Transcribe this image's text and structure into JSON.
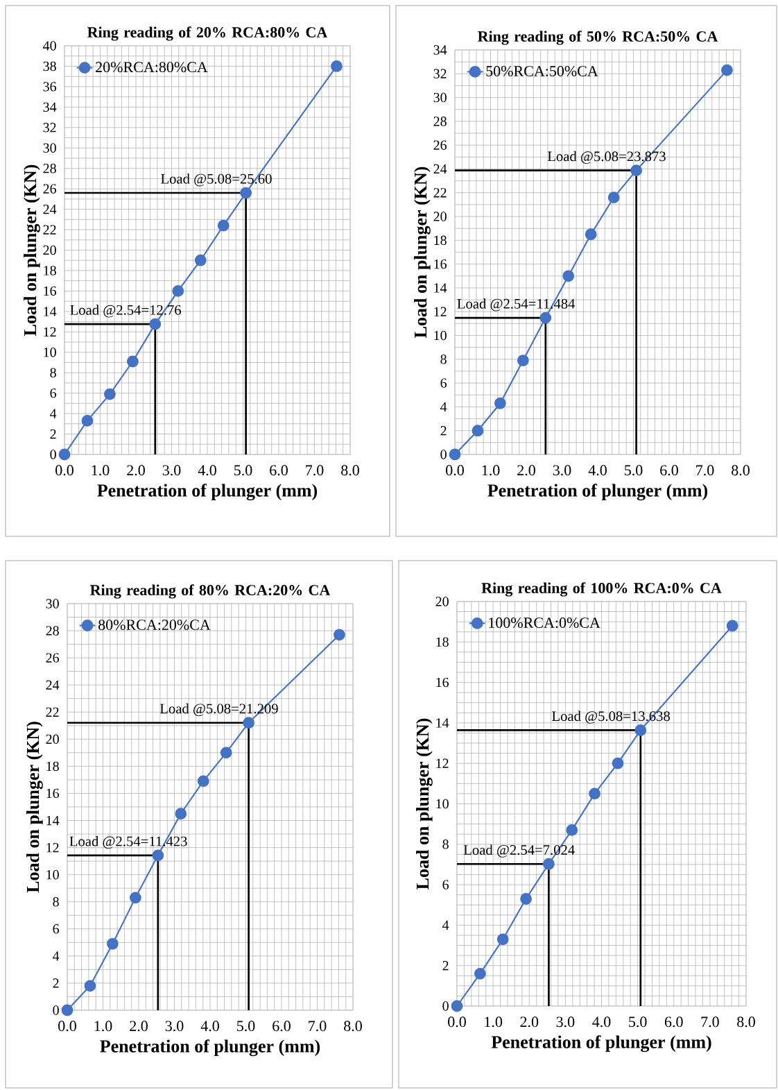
{
  "chart_data": [
    {
      "type": "line",
      "title": "Ring reading of 20% RCA:80% CA",
      "xlabel": "Penetration of plunger (mm)",
      "ylabel": "Load on plunger (KN)",
      "x": [
        0,
        0.64,
        1.27,
        1.91,
        2.54,
        3.18,
        3.81,
        4.45,
        5.08,
        7.62
      ],
      "series": [
        {
          "name": "20%RCA:80%CA",
          "color": "#4472c4",
          "values": [
            0,
            3.3,
            5.9,
            9.1,
            12.76,
            16.0,
            19.0,
            22.4,
            25.6,
            38.0
          ]
        },
        {
          "type": "line",
          "color": "#000000",
          "marker": "none",
          "x": [
            0,
            2.54,
            2.54
          ],
          "values": [
            12.76,
            12.76,
            0
          ]
        },
        {
          "type": "line",
          "color": "#000000",
          "marker": "none",
          "x": [
            0,
            5.08,
            5.08
          ],
          "values": [
            25.6,
            25.6,
            0
          ]
        }
      ],
      "xlim": [
        0,
        8
      ],
      "xticks": [
        {
          "value": 0,
          "label": "0.0"
        },
        {
          "value": 1,
          "label": "1.0"
        },
        {
          "value": 2,
          "label": "2.0"
        },
        {
          "value": 3,
          "label": "3.0"
        },
        {
          "value": 4,
          "label": "4.0"
        },
        {
          "value": 5,
          "label": "5.0"
        },
        {
          "value": 6,
          "label": "6.0"
        },
        {
          "value": 7,
          "label": "7.0"
        },
        {
          "value": 8,
          "label": "8.0"
        }
      ],
      "ylim": [
        0,
        40
      ],
      "yticks": [
        0,
        2,
        4,
        6,
        8,
        10,
        12,
        14,
        16,
        18,
        20,
        22,
        24,
        26,
        28,
        30,
        32,
        34,
        36,
        38,
        40
      ],
      "annotations": [
        "Load @2.54=12.76",
        "Load @5.08=25.60"
      ],
      "grid": true,
      "legend": "top left",
      "marker": "circle",
      "line_style": "solid"
    },
    {
      "type": "line",
      "title": "Ring reading of 50% RCA:50% CA",
      "xlabel": "Penetration of plunger (mm)",
      "ylabel": "Load on plunger (KN)",
      "x": [
        0,
        0.64,
        1.27,
        1.91,
        2.54,
        3.18,
        3.81,
        4.45,
        5.08,
        7.62
      ],
      "series": [
        {
          "name": "50%RCA:50%CA",
          "color": "#4472c4",
          "values": [
            0,
            2.0,
            4.3,
            7.9,
            11.484,
            15.0,
            18.5,
            21.6,
            23.873,
            32.3
          ]
        },
        {
          "type": "line",
          "color": "#000000",
          "marker": "none",
          "x": [
            0,
            2.54,
            2.54
          ],
          "values": [
            11.484,
            11.484,
            0
          ]
        },
        {
          "type": "line",
          "color": "#000000",
          "marker": "none",
          "x": [
            0,
            5.08,
            5.08
          ],
          "values": [
            23.873,
            23.873,
            0
          ]
        }
      ],
      "xlim": [
        0,
        8
      ],
      "xticks": [
        {
          "value": 0,
          "label": "0.0"
        },
        {
          "value": 1,
          "label": "1.0"
        },
        {
          "value": 2,
          "label": "2.0"
        },
        {
          "value": 3,
          "label": "3.0"
        },
        {
          "value": 4,
          "label": "4.0"
        },
        {
          "value": 5,
          "label": "5.0"
        },
        {
          "value": 6,
          "label": "6.0"
        },
        {
          "value": 7,
          "label": "7.0"
        },
        {
          "value": 8,
          "label": "8.0"
        }
      ],
      "ylim": [
        0,
        34
      ],
      "yticks": [
        0,
        2,
        4,
        6,
        8,
        10,
        12,
        14,
        16,
        18,
        20,
        22,
        24,
        26,
        28,
        30,
        32,
        34
      ],
      "annotations": [
        "Load @2.54=11.484",
        "Load @5.08=23.873"
      ],
      "grid": true,
      "legend": "top left",
      "marker": "circle",
      "line_style": "solid"
    },
    {
      "type": "line",
      "title": "Ring reading of 80% RCA:20% CA",
      "xlabel": "Penetration of plunger (mm)",
      "ylabel": "Load on plunger (KN)",
      "x": [
        0,
        0.64,
        1.27,
        1.91,
        2.54,
        3.18,
        3.81,
        4.45,
        5.08,
        7.62
      ],
      "series": [
        {
          "name": "80%RCA:20%CA",
          "color": "#4472c4",
          "values": [
            0,
            1.8,
            4.9,
            8.3,
            11.423,
            14.5,
            16.9,
            19.0,
            21.209,
            27.7
          ]
        },
        {
          "type": "line",
          "color": "#000000",
          "marker": "none",
          "x": [
            0,
            2.54,
            2.54
          ],
          "values": [
            11.423,
            11.423,
            0
          ]
        },
        {
          "type": "line",
          "color": "#000000",
          "marker": "none",
          "x": [
            0,
            5.08,
            5.08
          ],
          "values": [
            21.209,
            21.209,
            0
          ]
        }
      ],
      "xlim": [
        0,
        8
      ],
      "xticks": [
        {
          "value": 0,
          "label": "0.0"
        },
        {
          "value": 1,
          "label": "1.0"
        },
        {
          "value": 2,
          "label": "2.0"
        },
        {
          "value": 3,
          "label": "3.0"
        },
        {
          "value": 4,
          "label": "4.0"
        },
        {
          "value": 5,
          "label": "5.0"
        },
        {
          "value": 6,
          "label": "6.0"
        },
        {
          "value": 7,
          "label": "7.0"
        },
        {
          "value": 8,
          "label": "8.0"
        }
      ],
      "ylim": [
        0,
        30
      ],
      "yticks": [
        0,
        2,
        4,
        6,
        8,
        10,
        12,
        14,
        16,
        18,
        20,
        22,
        24,
        26,
        28,
        30
      ],
      "annotations": [
        "Load @2.54=11.423",
        "Load @5.08=21.209"
      ],
      "grid": true,
      "legend": "top left",
      "marker": "circle",
      "line_style": "solid"
    },
    {
      "type": "line",
      "title": "Ring reading of 100% RCA:0% CA",
      "xlabel": "Penetration of plunger (mm)",
      "ylabel": "Load on plunger (KN)",
      "x": [
        0,
        0.64,
        1.27,
        1.91,
        2.54,
        3.18,
        3.81,
        4.45,
        5.08,
        7.62
      ],
      "series": [
        {
          "name": "100%RCA:0%CA",
          "color": "#4472c4",
          "values": [
            0,
            1.6,
            3.3,
            5.3,
            7.024,
            8.7,
            10.5,
            12.0,
            13.638,
            18.8
          ]
        },
        {
          "type": "line",
          "color": "#000000",
          "marker": "none",
          "x": [
            0,
            2.54,
            2.54
          ],
          "values": [
            7.024,
            7.024,
            0
          ]
        },
        {
          "type": "line",
          "color": "#000000",
          "marker": "none",
          "x": [
            0,
            5.08,
            5.08
          ],
          "values": [
            13.638,
            13.638,
            0
          ]
        }
      ],
      "xlim": [
        0,
        8
      ],
      "xticks": [
        {
          "value": 0,
          "label": "0.0"
        },
        {
          "value": 1,
          "label": "1.0"
        },
        {
          "value": 2,
          "label": "2.0"
        },
        {
          "value": 3,
          "label": "3.0"
        },
        {
          "value": 4,
          "label": "4.0"
        },
        {
          "value": 5,
          "label": "5.0"
        },
        {
          "value": 6,
          "label": "6.0"
        },
        {
          "value": 7,
          "label": "7.0"
        },
        {
          "value": 8,
          "label": "8.0"
        }
      ],
      "ylim": [
        0,
        20
      ],
      "yticks": [
        0,
        2,
        4,
        6,
        8,
        10,
        12,
        14,
        16,
        18,
        20
      ],
      "annotations": [
        "Load @2.54=7.024",
        "Load @5.08=13.638"
      ],
      "grid": true,
      "legend": "top left",
      "marker": "circle",
      "line_style": "solid"
    }
  ]
}
